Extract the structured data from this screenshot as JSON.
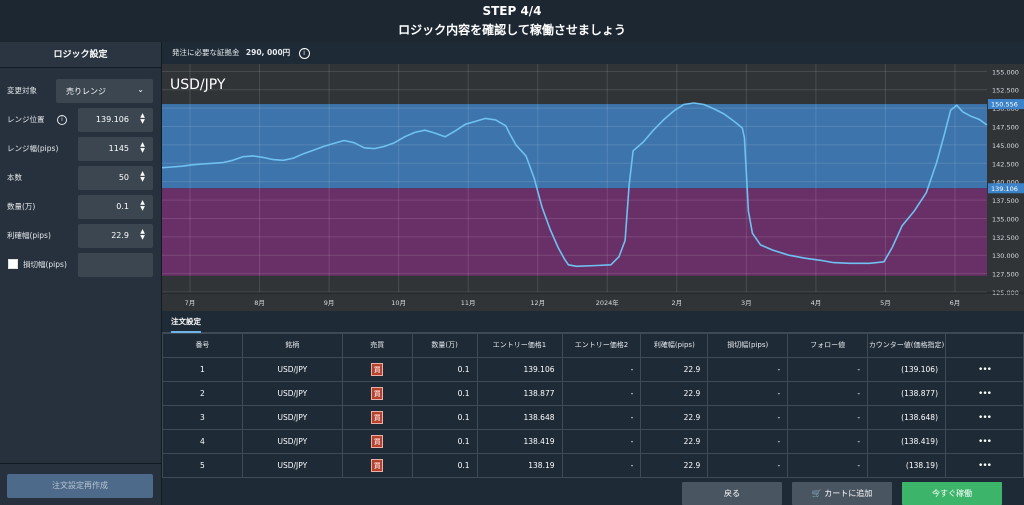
{
  "header": {
    "step": "STEP 4/4",
    "subtitle": "ロジック内容を確認して稼働させましょう"
  },
  "sidebar": {
    "title": "ロジック設定",
    "fields": [
      {
        "label": "変更対象",
        "value": "売りレンジ",
        "type": "select"
      },
      {
        "label": "レンジ位置",
        "value": "139.106",
        "type": "number",
        "info": true
      },
      {
        "label": "レンジ幅(pips)",
        "value": "1145",
        "type": "number"
      },
      {
        "label": "本数",
        "value": "50",
        "type": "number"
      },
      {
        "label": "数量(万)",
        "value": "0.1",
        "type": "number"
      },
      {
        "label": "利確幅(pips)",
        "value": "22.9",
        "type": "number"
      },
      {
        "label": "損切幅(pips)",
        "value": "",
        "type": "checkbox"
      }
    ],
    "recreate_button": "注文設定再作成"
  },
  "margin": {
    "label": "発注に必要な証拠金",
    "value": "290, 000円"
  },
  "chart_data": {
    "type": "line",
    "title": "USD/JPY",
    "x_ticks": [
      "7月",
      "8月",
      "9月",
      "10月",
      "11月",
      "12月",
      "2024年",
      "2月",
      "3月",
      "4月",
      "5月",
      "6月"
    ],
    "y_ticks": [
      "155.000",
      "152.500",
      "150.000",
      "147.500",
      "145.000",
      "142.500",
      "140.000",
      "137.500",
      "135.000",
      "132.500",
      "130.000",
      "127.500",
      "125.000"
    ],
    "ylim": [
      125,
      156
    ],
    "range_upper": "150.556",
    "range_lower": "139.106",
    "series": [
      {
        "values": [
          [
            0,
            141.9
          ],
          [
            5,
            142.0
          ],
          [
            10,
            142.1
          ],
          [
            15,
            142.3
          ],
          [
            20,
            142.4
          ],
          [
            25,
            142.5
          ],
          [
            30,
            142.6
          ],
          [
            35,
            142.9
          ],
          [
            40,
            143.4
          ],
          [
            45,
            143.5
          ],
          [
            50,
            143.3
          ],
          [
            55,
            143.0
          ],
          [
            60,
            142.9
          ],
          [
            65,
            143.2
          ],
          [
            70,
            143.8
          ],
          [
            75,
            144.3
          ],
          [
            80,
            144.8
          ],
          [
            85,
            145.2
          ],
          [
            90,
            145.6
          ],
          [
            95,
            145.3
          ],
          [
            100,
            144.6
          ],
          [
            105,
            144.5
          ],
          [
            110,
            144.8
          ],
          [
            115,
            145.3
          ],
          [
            120,
            146.1
          ],
          [
            125,
            146.7
          ],
          [
            130,
            147.0
          ],
          [
            135,
            146.6
          ],
          [
            140,
            146.1
          ],
          [
            145,
            146.9
          ],
          [
            150,
            147.8
          ],
          [
            155,
            148.2
          ],
          [
            160,
            148.6
          ],
          [
            165,
            148.4
          ],
          [
            170,
            147.6
          ],
          [
            172,
            146.5
          ],
          [
            175,
            145.0
          ],
          [
            180,
            143.5
          ],
          [
            184,
            140.5
          ],
          [
            188,
            136.5
          ],
          [
            192,
            133.5
          ],
          [
            196,
            131.0
          ],
          [
            199,
            129.5
          ],
          [
            201,
            128.7
          ],
          [
            205,
            128.5
          ],
          [
            215,
            128.6
          ],
          [
            222,
            128.7
          ],
          [
            226,
            129.8
          ],
          [
            229,
            132.0
          ],
          [
            231,
            139.5
          ],
          [
            233,
            144.2
          ],
          [
            238,
            145.4
          ],
          [
            243,
            147.0
          ],
          [
            248,
            148.4
          ],
          [
            253,
            149.6
          ],
          [
            258,
            150.5
          ],
          [
            263,
            150.7
          ],
          [
            268,
            150.5
          ],
          [
            273,
            149.9
          ],
          [
            278,
            149.2
          ],
          [
            283,
            148.2
          ],
          [
            287,
            147.3
          ],
          [
            288,
            146.0
          ],
          [
            290,
            136.0
          ],
          [
            292,
            133.0
          ],
          [
            296,
            131.4
          ],
          [
            302,
            130.7
          ],
          [
            310,
            130.0
          ],
          [
            318,
            129.6
          ],
          [
            326,
            129.3
          ],
          [
            332,
            129.0
          ],
          [
            340,
            128.9
          ],
          [
            350,
            128.9
          ],
          [
            357,
            129.1
          ],
          [
            361,
            131.0
          ],
          [
            366,
            134.0
          ],
          [
            372,
            136.0
          ],
          [
            378,
            138.5
          ],
          [
            383,
            142.5
          ],
          [
            387,
            146.5
          ],
          [
            390,
            149.7
          ],
          [
            393,
            150.4
          ],
          [
            396,
            149.5
          ],
          [
            400,
            148.9
          ],
          [
            404,
            148.5
          ],
          [
            408,
            147.7
          ]
        ]
      }
    ]
  },
  "orders": {
    "tab": "注文設定",
    "columns": [
      "番号",
      "銘柄",
      "売買",
      "数量(万)",
      "エントリー価格1",
      "エントリー価格2",
      "利確幅(pips)",
      "損切幅(pips)",
      "フォロー値",
      "カウンター値(価格指定)",
      ""
    ],
    "side_label": "買",
    "menu_label": "•••",
    "rows": [
      {
        "no": "1",
        "pair": "USD/JPY",
        "qty": "0.1",
        "entry1": "139.106",
        "entry2": "-",
        "tp": "22.9",
        "sl": "-",
        "follow": "-",
        "counter": "(139.106)"
      },
      {
        "no": "2",
        "pair": "USD/JPY",
        "qty": "0.1",
        "entry1": "138.877",
        "entry2": "-",
        "tp": "22.9",
        "sl": "-",
        "follow": "-",
        "counter": "(138.877)"
      },
      {
        "no": "3",
        "pair": "USD/JPY",
        "qty": "0.1",
        "entry1": "138.648",
        "entry2": "-",
        "tp": "22.9",
        "sl": "-",
        "follow": "-",
        "counter": "(138.648)"
      },
      {
        "no": "4",
        "pair": "USD/JPY",
        "qty": "0.1",
        "entry1": "138.419",
        "entry2": "-",
        "tp": "22.9",
        "sl": "-",
        "follow": "-",
        "counter": "(138.419)"
      },
      {
        "no": "5",
        "pair": "USD/JPY",
        "qty": "0.1",
        "entry1": "138.19",
        "entry2": "-",
        "tp": "22.9",
        "sl": "-",
        "follow": "-",
        "counter": "(138.19)"
      }
    ]
  },
  "footer": {
    "back": "戻る",
    "cart": "カートに追加",
    "run_now": "今すぐ稼働"
  },
  "colors": {
    "upper_band": "#3f79b5",
    "lower_band": "#6f2f6b",
    "line": "#6fc1f0",
    "accent_green": "#3cb56b"
  }
}
